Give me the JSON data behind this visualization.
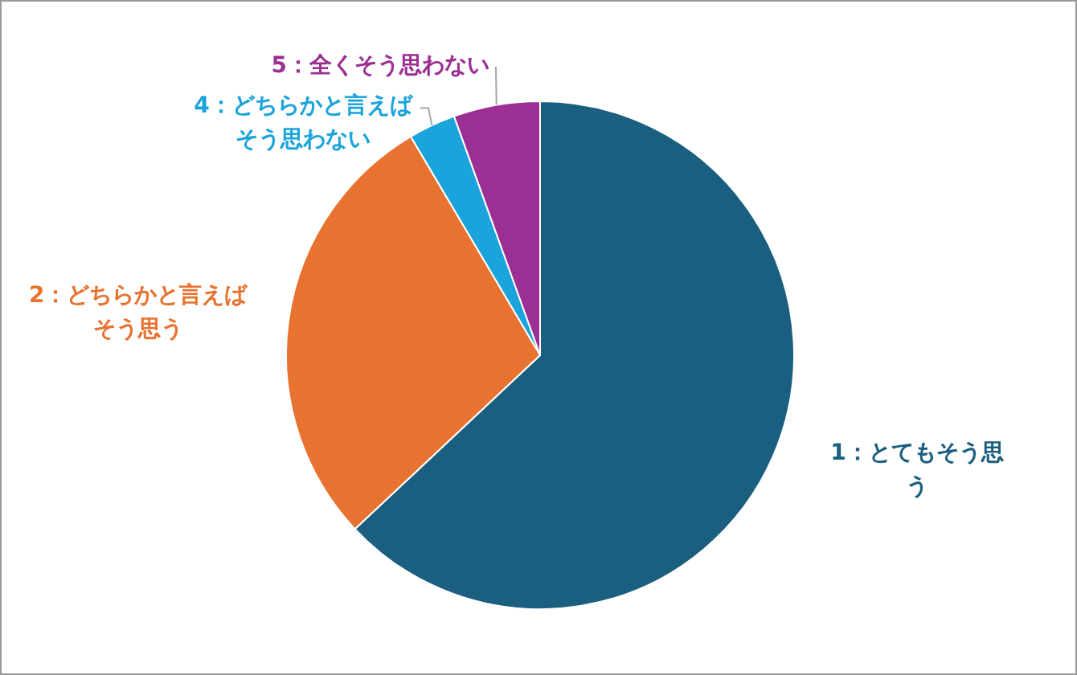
{
  "chart_data": {
    "type": "pie",
    "categories": [
      "1：とてもそう思う",
      "2：どちらかと言えばそう思う",
      "4：どちらかと言えばそう思わない",
      "5：全くそう思わない"
    ],
    "values": [
      63,
      28.5,
      3,
      5.5
    ],
    "colors": [
      "#1a5f80",
      "#e8722f",
      "#1ba3dc",
      "#9b2f94"
    ]
  }
}
